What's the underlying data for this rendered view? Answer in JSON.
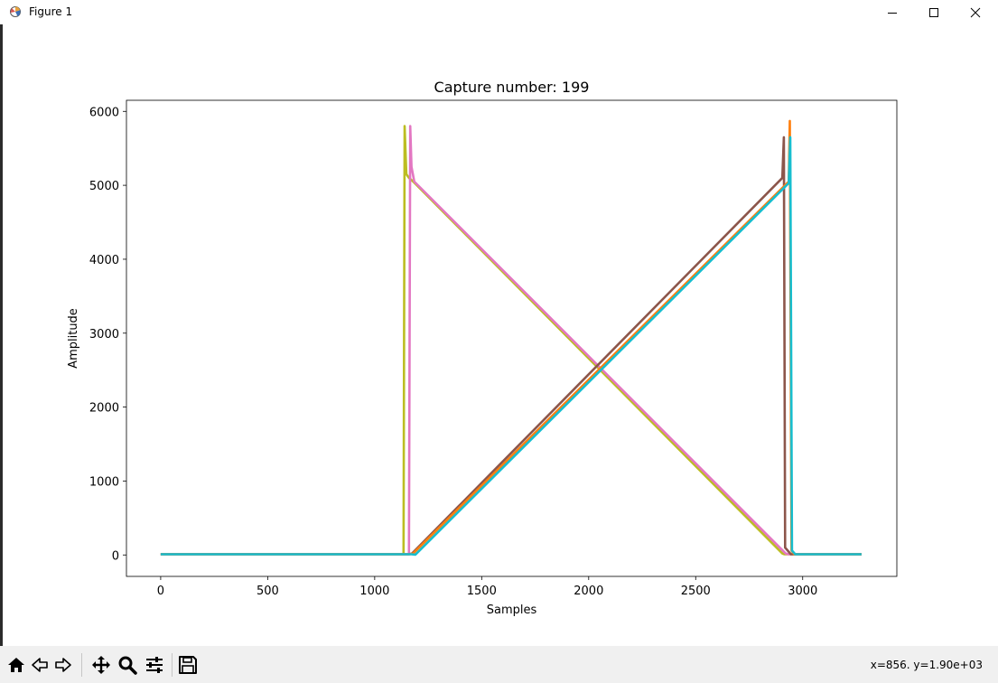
{
  "window": {
    "title": "Figure 1",
    "icons": {
      "app": "matplotlib-figure-icon",
      "minimize": "minimize-icon",
      "maximize": "maximize-icon",
      "close": "close-icon"
    }
  },
  "toolbar": {
    "buttons": [
      {
        "name": "home-icon"
      },
      {
        "name": "back-arrow-icon"
      },
      {
        "name": "forward-arrow-icon"
      },
      {
        "name": "pan-icon"
      },
      {
        "name": "zoom-icon"
      },
      {
        "name": "configure-subplots-icon"
      },
      {
        "name": "save-icon"
      }
    ],
    "coords": "x=856. y=1.90e+03"
  },
  "chart_data": {
    "type": "line",
    "title": "Capture number: 199",
    "xlabel": "Samples",
    "ylabel": "Amplitude",
    "xlim": [
      -160,
      3440
    ],
    "ylim": [
      -290,
      6150
    ],
    "xticks": [
      0,
      500,
      1000,
      1500,
      2000,
      2500,
      3000
    ],
    "yticks": [
      0,
      1000,
      2000,
      3000,
      4000,
      5000,
      6000
    ],
    "grid": false,
    "legend": "none",
    "series": [
      {
        "color": "#bcbd22",
        "x": [
          0,
          1135,
          1140,
          1148,
          1160,
          1180,
          2905,
          2915,
          2950,
          3275
        ],
        "y": [
          10,
          10,
          5800,
          5150,
          5100,
          5050,
          20,
          10,
          10,
          10
        ]
      },
      {
        "color": "#e377c2",
        "x": [
          0,
          1160,
          1166,
          1172,
          1185,
          2920,
          2935,
          3275
        ],
        "y": [
          10,
          10,
          5800,
          5250,
          5050,
          20,
          10,
          10
        ]
      },
      {
        "color": "#8c564b",
        "x": [
          0,
          1160,
          1175,
          2905,
          2912,
          2918,
          2945,
          3275
        ],
        "y": [
          10,
          10,
          20,
          5100,
          5650,
          100,
          10,
          10
        ]
      },
      {
        "color": "#ff7f0e",
        "x": [
          0,
          1165,
          1180,
          2935,
          2940,
          2948,
          2960,
          3275
        ],
        "y": [
          10,
          10,
          20,
          5050,
          5870,
          60,
          10,
          10
        ]
      },
      {
        "color": "#17becf",
        "x": [
          0,
          1170,
          1190,
          2935,
          2942,
          2950,
          2965,
          3275
        ],
        "y": [
          10,
          10,
          5,
          5030,
          5650,
          60,
          10,
          10
        ]
      }
    ]
  }
}
